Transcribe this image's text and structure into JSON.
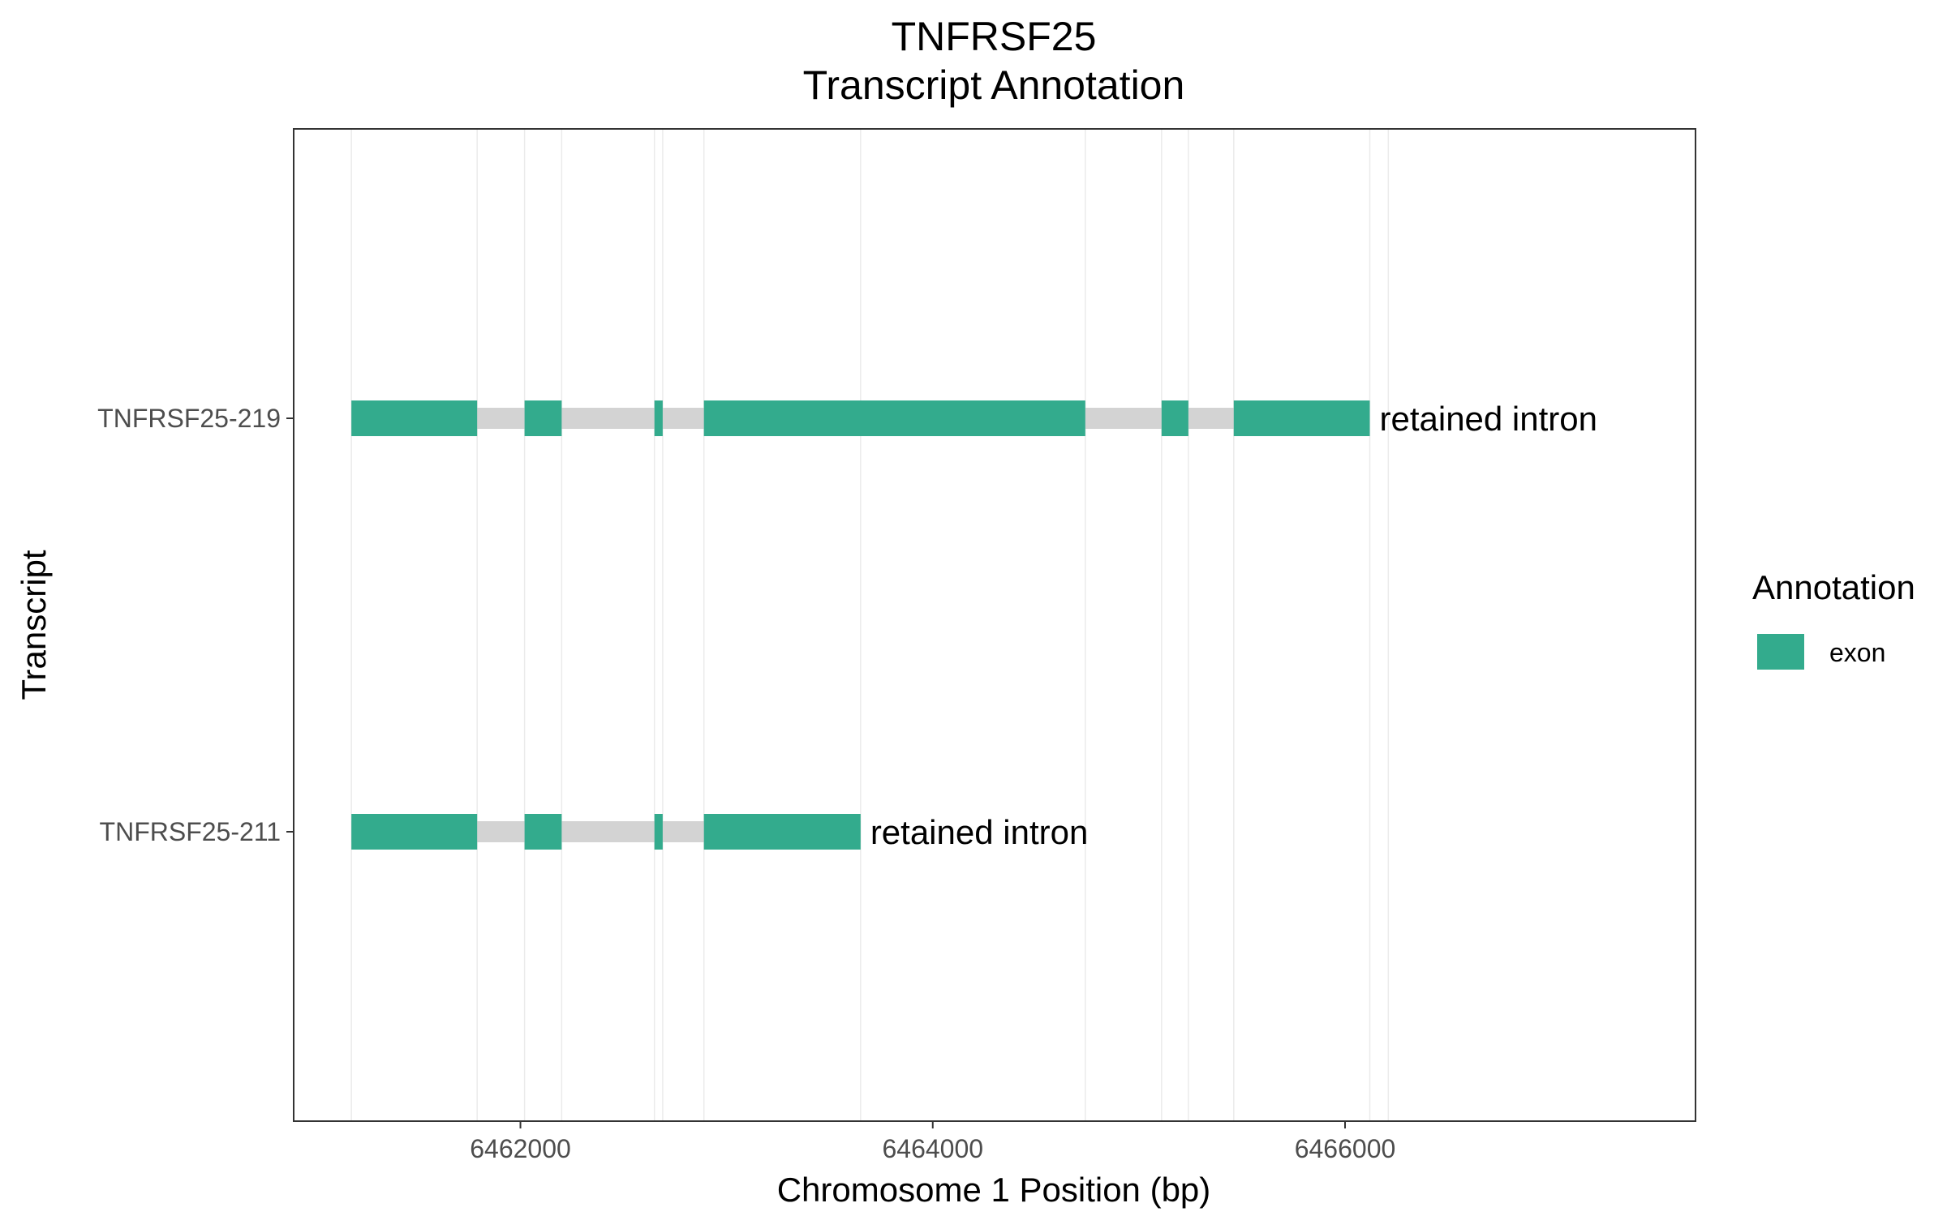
{
  "chart_data": {
    "type": "gene-track",
    "title": "TNFRSF25",
    "subtitle": "Transcript Annotation",
    "xlabel": "Chromosome 1 Position (bp)",
    "ylabel": "Transcript",
    "xlim": [
      6460900,
      6467700
    ],
    "xticks": [
      6462000,
      6464000,
      6466000
    ],
    "xtick_labels": [
      "6462000",
      "6464000",
      "6466000"
    ],
    "grid_x": [
      6461180,
      6461790,
      6462020,
      6462200,
      6462650,
      6462690,
      6462890,
      6463650,
      6464740,
      6465110,
      6465240,
      6465460,
      6466120,
      6466210
    ],
    "legend": {
      "title": "Annotation",
      "items": [
        {
          "label": "exon",
          "color": "#33AB8D"
        }
      ]
    },
    "colors": {
      "exon": "#33AB8D",
      "intron": "#d3d3d3",
      "frame": "#333333",
      "grid": "#ebebeb"
    },
    "transcripts": [
      {
        "name": "TNFRSF25-219",
        "start": 6461180,
        "end": 6466120,
        "biotype": "retained intron",
        "exons": [
          [
            6461180,
            6461790
          ],
          [
            6462020,
            6462200
          ],
          [
            6462650,
            6462690
          ],
          [
            6462890,
            6464740
          ],
          [
            6465110,
            6465240
          ],
          [
            6465460,
            6466120
          ]
        ]
      },
      {
        "name": "TNFRSF25-211",
        "start": 6461180,
        "end": 6463650,
        "biotype": "retained intron",
        "exons": [
          [
            6461180,
            6461790
          ],
          [
            6462020,
            6462200
          ],
          [
            6462650,
            6462690
          ],
          [
            6462890,
            6463650
          ]
        ]
      }
    ]
  }
}
